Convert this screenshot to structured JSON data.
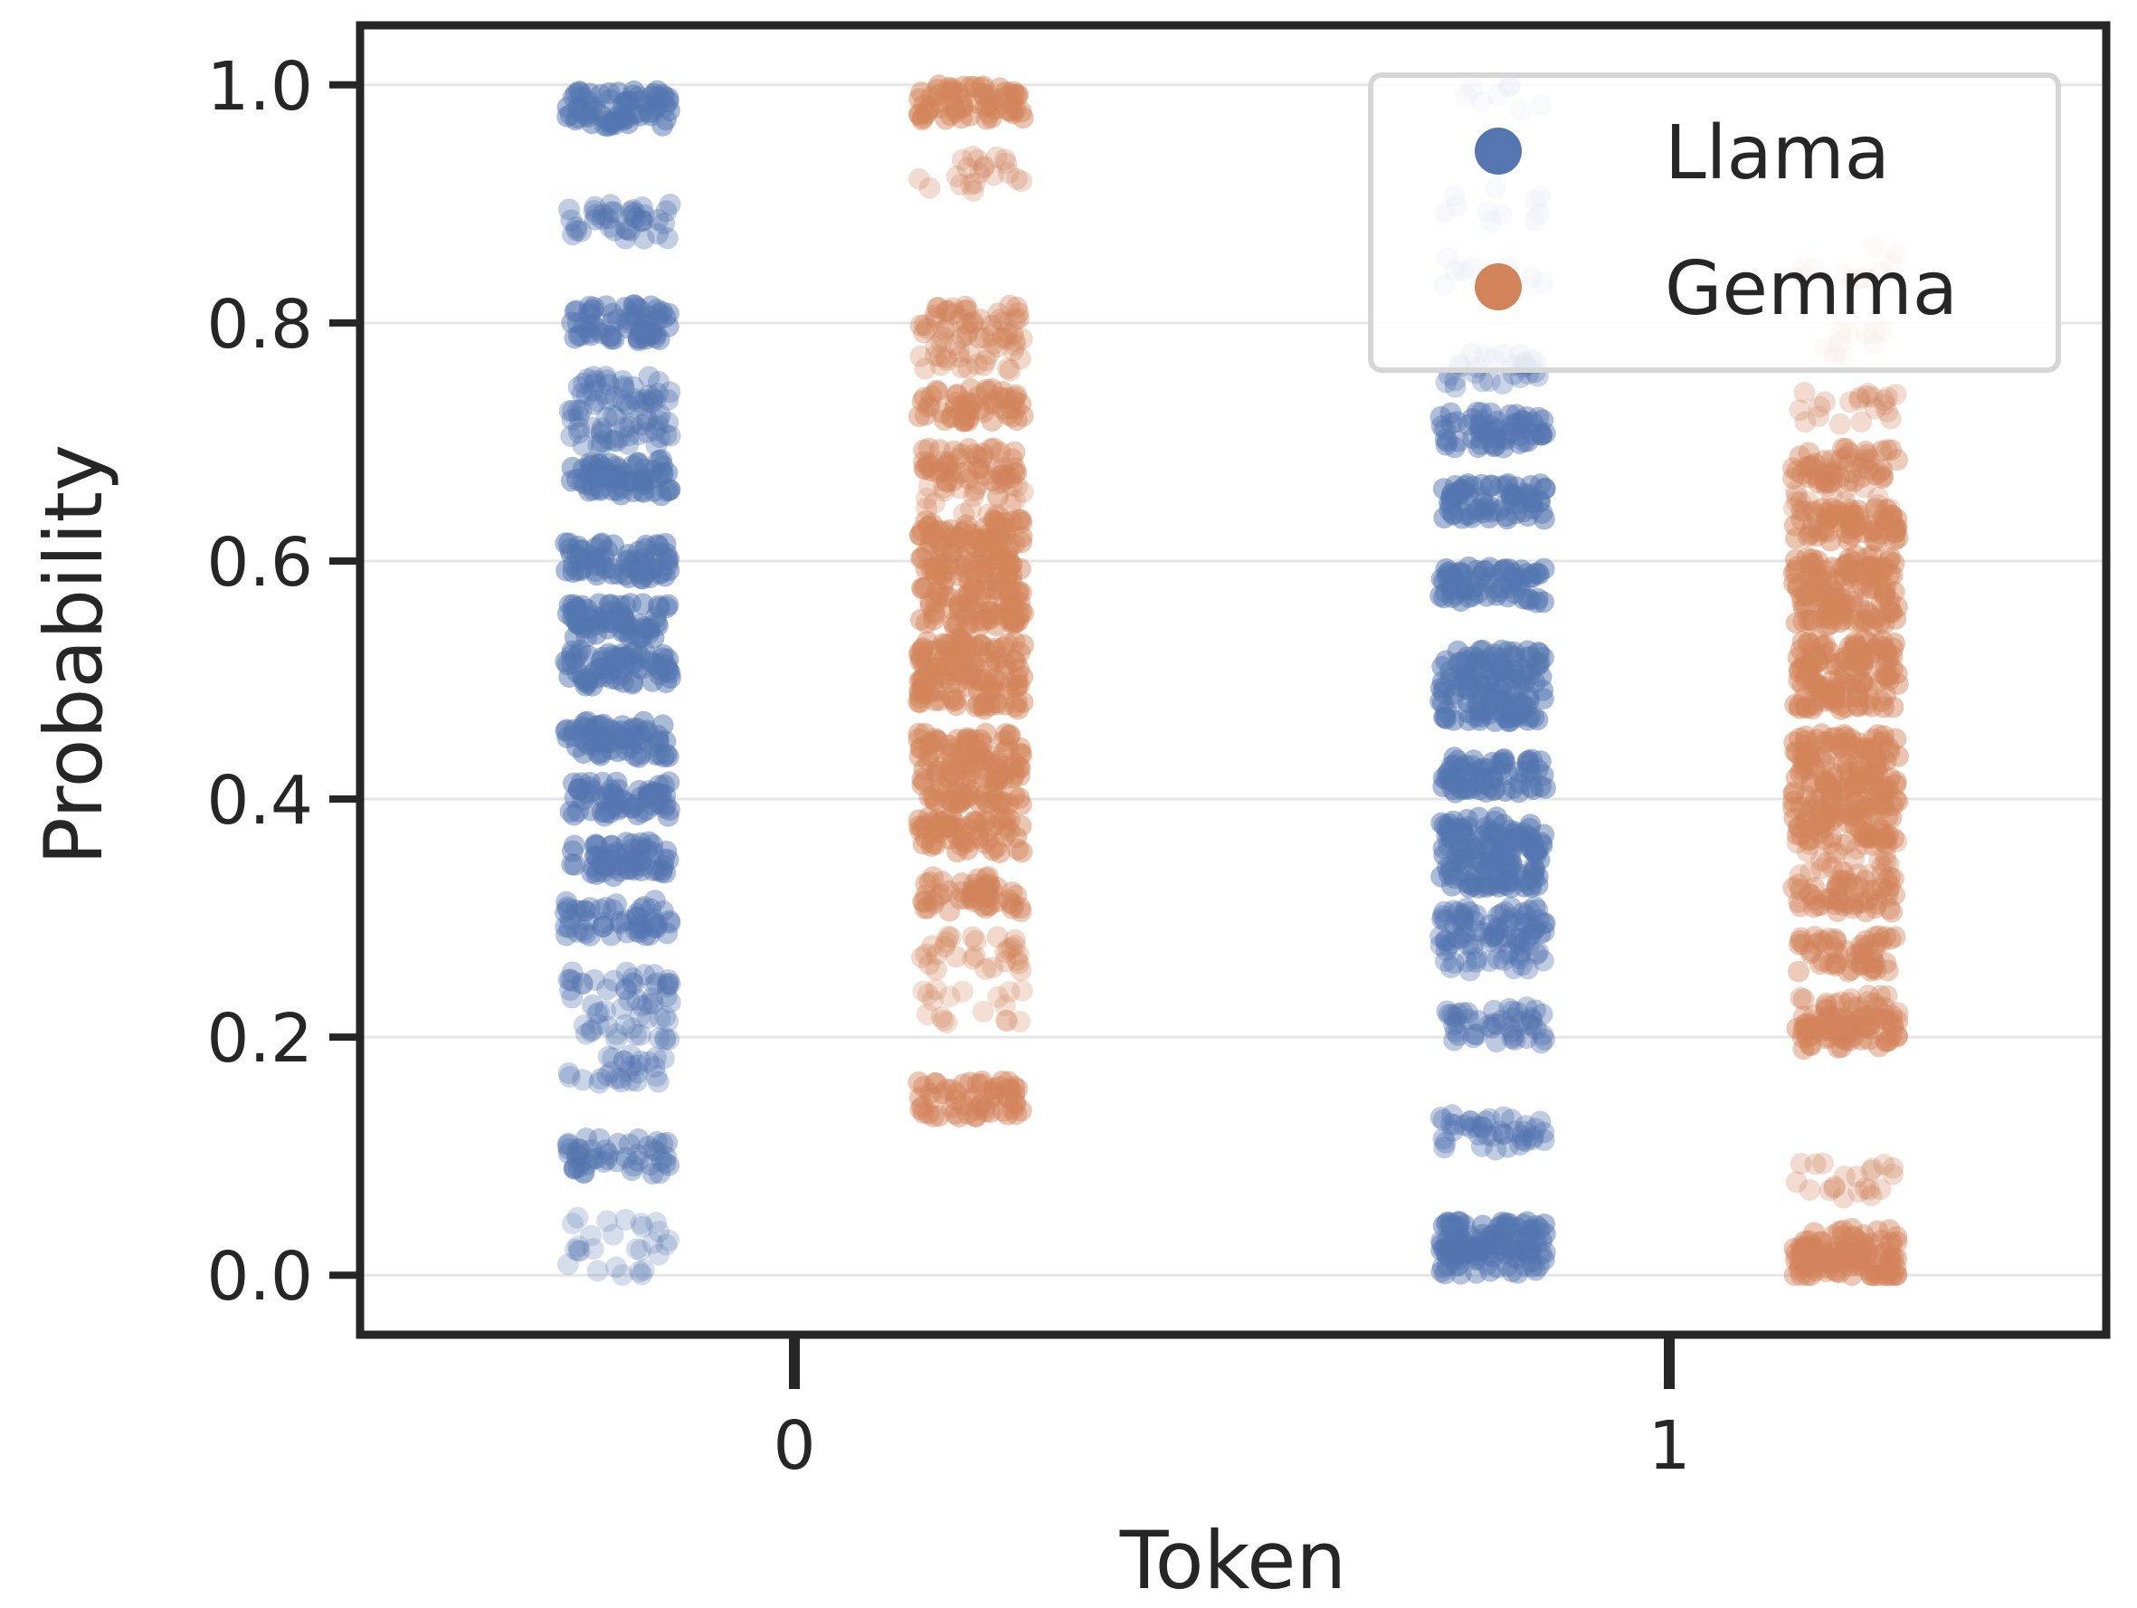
{
  "chart_data": {
    "type": "scatter",
    "subtype": "strip",
    "title": "",
    "xlabel": "Token",
    "ylabel": "Probability",
    "categories": [
      "0",
      "1"
    ],
    "ylim": [
      -0.05,
      1.05
    ],
    "yticks": [
      "0.0",
      "0.2",
      "0.4",
      "0.6",
      "0.8",
      "1.0"
    ],
    "grid": "horizontal",
    "legend": {
      "position": "top-right"
    },
    "series": [
      {
        "name": "Llama",
        "color": "#5475b0",
        "bands": [
          [
            [
              0.98,
              1.0
            ],
            [
              0.885,
              0.55
            ],
            [
              0.8,
              0.9
            ],
            [
              0.74,
              0.6
            ],
            [
              0.71,
              0.55
            ],
            [
              0.67,
              1.0
            ],
            [
              0.6,
              1.0
            ],
            [
              0.55,
              1.0
            ],
            [
              0.51,
              1.0
            ],
            [
              0.45,
              1.0
            ],
            [
              0.4,
              0.9
            ],
            [
              0.35,
              0.9
            ],
            [
              0.3,
              0.75
            ],
            [
              0.24,
              0.5
            ],
            [
              0.21,
              0.35
            ],
            [
              0.175,
              0.4
            ],
            [
              0.1,
              0.7
            ],
            [
              0.035,
              0.2
            ],
            [
              0.015,
              0.2
            ]
          ],
          [
            [
              0.985,
              0.12
            ],
            [
              0.9,
              0.15
            ],
            [
              0.84,
              0.15
            ],
            [
              0.76,
              0.4
            ],
            [
              0.71,
              0.9
            ],
            [
              0.65,
              1.0
            ],
            [
              0.58,
              1.0
            ],
            [
              0.51,
              1.0
            ],
            [
              0.48,
              1.0
            ],
            [
              0.42,
              1.0
            ],
            [
              0.37,
              1.0
            ],
            [
              0.34,
              1.0
            ],
            [
              0.295,
              0.75
            ],
            [
              0.27,
              0.6
            ],
            [
              0.21,
              0.65
            ],
            [
              0.12,
              0.6
            ],
            [
              0.03,
              1.0
            ],
            [
              0.015,
              0.8
            ]
          ]
        ]
      },
      {
        "name": "Gemma",
        "color": "#d2835a",
        "bands": [
          [
            [
              0.985,
              0.9
            ],
            [
              0.925,
              0.3
            ],
            [
              0.8,
              0.6
            ],
            [
              0.775,
              0.4
            ],
            [
              0.73,
              0.8
            ],
            [
              0.68,
              0.75
            ],
            [
              0.65,
              0.35
            ],
            [
              0.62,
              0.9
            ],
            [
              0.59,
              0.9
            ],
            [
              0.56,
              0.9
            ],
            [
              0.52,
              0.9
            ],
            [
              0.49,
              0.9
            ],
            [
              0.44,
              0.9
            ],
            [
              0.41,
              0.9
            ],
            [
              0.37,
              0.9
            ],
            [
              0.32,
              0.75
            ],
            [
              0.27,
              0.4
            ],
            [
              0.225,
              0.25
            ],
            [
              0.148,
              0.85
            ]
          ],
          [
            [
              0.85,
              0.15
            ],
            [
              0.78,
              0.15
            ],
            [
              0.73,
              0.3
            ],
            [
              0.68,
              0.75
            ],
            [
              0.65,
              0.3
            ],
            [
              0.63,
              0.9
            ],
            [
              0.59,
              0.9
            ],
            [
              0.56,
              0.9
            ],
            [
              0.52,
              0.9
            ],
            [
              0.49,
              0.9
            ],
            [
              0.44,
              0.9
            ],
            [
              0.41,
              0.9
            ],
            [
              0.38,
              0.9
            ],
            [
              0.35,
              0.45
            ],
            [
              0.32,
              0.75
            ],
            [
              0.27,
              0.75
            ],
            [
              0.22,
              0.6
            ],
            [
              0.205,
              0.85
            ],
            [
              0.08,
              0.3
            ],
            [
              0.025,
              0.85
            ],
            [
              0.01,
              0.85
            ]
          ]
        ]
      }
    ]
  }
}
